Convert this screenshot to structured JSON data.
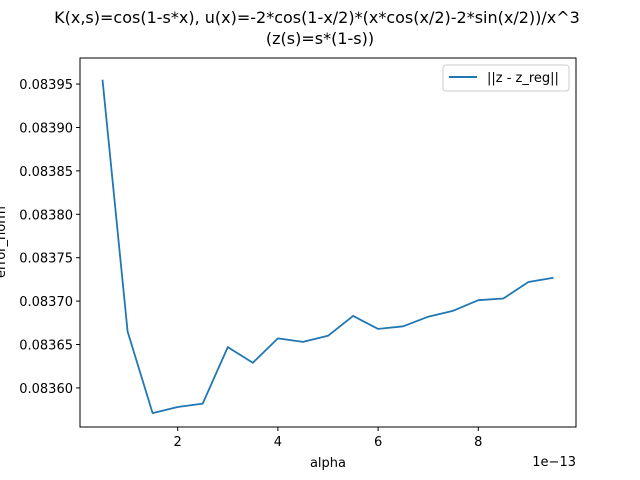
{
  "chart_data": {
    "type": "line",
    "title_line1": "K(x,s)=cos(1-s*x), u(x)=-2*cos(1-x/2)*(x*cos(x/2)-2*sin(x/2))/x^3",
    "title_line2": "(z(s)=s*(1-s))",
    "xlabel": "alpha",
    "ylabel": "error_norm",
    "x_offset_text": "1e−13",
    "x_scale": 1e-13,
    "xlim": [
      0.05,
      9.95
    ],
    "ylim": [
      0.083555,
      0.08398
    ],
    "x_ticks": [
      2,
      4,
      6,
      8
    ],
    "x_tick_labels": [
      "2",
      "4",
      "6",
      "8"
    ],
    "y_ticks": [
      0.0836,
      0.08365,
      0.0837,
      0.08375,
      0.0838,
      0.08385,
      0.0839,
      0.08395
    ],
    "y_tick_labels": [
      "0.08360",
      "0.08365",
      "0.08370",
      "0.08375",
      "0.08380",
      "0.08385",
      "0.08390",
      "0.08395"
    ],
    "grid": false,
    "legend_position": "top-right",
    "series": [
      {
        "name": "||z - z_reg||",
        "color": "#1f77b4",
        "x": [
          0.5,
          1.0,
          1.5,
          2.0,
          2.5,
          3.0,
          3.5,
          4.0,
          4.5,
          5.0,
          5.5,
          6.0,
          6.5,
          7.0,
          7.5,
          8.0,
          8.5,
          9.0,
          9.5
        ],
        "y": [
          0.083955,
          0.083665,
          0.083571,
          0.083578,
          0.083582,
          0.083647,
          0.083629,
          0.083657,
          0.083653,
          0.08366,
          0.083683,
          0.083668,
          0.083671,
          0.083682,
          0.083689,
          0.083701,
          0.083703,
          0.083722,
          0.083727
        ]
      }
    ]
  }
}
